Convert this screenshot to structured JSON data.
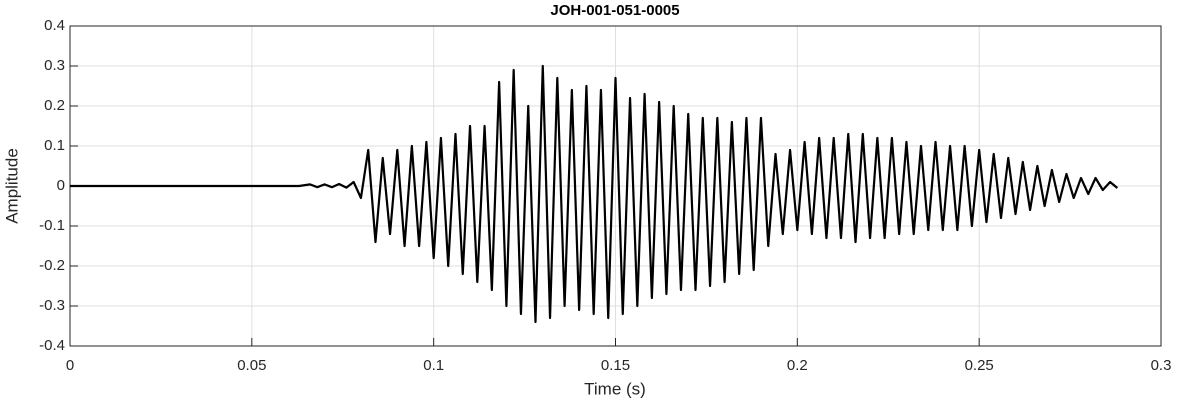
{
  "chart_data": {
    "type": "line",
    "title": "JOH-001-051-0005",
    "x_label": "Time (s)",
    "y_label": "Amplitude",
    "xlim": [
      0,
      0.3
    ],
    "ylim": [
      -0.4,
      0.4
    ],
    "xticks": [
      0,
      0.05,
      0.1,
      0.15,
      0.2,
      0.25,
      0.3
    ],
    "yticks": [
      -0.4,
      -0.3,
      -0.2,
      -0.1,
      0,
      0.1,
      0.2,
      0.3,
      0.4
    ],
    "grid": true,
    "series": [
      {
        "color": "#000000",
        "x": [
          0,
          0.063,
          0.066,
          0.068,
          0.07,
          0.072,
          0.074,
          0.076,
          0.078,
          0.08,
          0.082,
          0.084,
          0.086,
          0.088,
          0.09,
          0.092,
          0.094,
          0.096,
          0.098,
          0.1,
          0.102,
          0.104,
          0.106,
          0.108,
          0.11,
          0.112,
          0.114,
          0.116,
          0.118,
          0.12,
          0.122,
          0.124,
          0.126,
          0.128,
          0.13,
          0.132,
          0.134,
          0.136,
          0.138,
          0.14,
          0.142,
          0.144,
          0.146,
          0.148,
          0.15,
          0.152,
          0.154,
          0.156,
          0.158,
          0.16,
          0.162,
          0.164,
          0.166,
          0.168,
          0.17,
          0.172,
          0.174,
          0.176,
          0.178,
          0.18,
          0.182,
          0.184,
          0.186,
          0.188,
          0.19,
          0.192,
          0.194,
          0.196,
          0.198,
          0.2,
          0.202,
          0.204,
          0.206,
          0.208,
          0.21,
          0.212,
          0.214,
          0.216,
          0.218,
          0.22,
          0.222,
          0.224,
          0.226,
          0.228,
          0.23,
          0.232,
          0.234,
          0.236,
          0.238,
          0.24,
          0.242,
          0.244,
          0.246,
          0.248,
          0.25,
          0.252,
          0.254,
          0.256,
          0.258,
          0.26,
          0.262,
          0.264,
          0.266,
          0.268,
          0.27,
          0.272,
          0.274,
          0.276,
          0.278,
          0.28,
          0.282,
          0.284,
          0.286,
          0.288
        ],
        "values": [
          0,
          0,
          0.004,
          -0.003,
          0.004,
          -0.003,
          0.005,
          -0.004,
          0.01,
          -0.03,
          0.09,
          -0.14,
          0.07,
          -0.12,
          0.09,
          -0.15,
          0.1,
          -0.15,
          0.11,
          -0.18,
          0.12,
          -0.2,
          0.13,
          -0.22,
          0.15,
          -0.24,
          0.15,
          -0.26,
          0.26,
          -0.3,
          0.29,
          -0.32,
          0.2,
          -0.34,
          0.3,
          -0.33,
          0.27,
          -0.3,
          0.24,
          -0.31,
          0.25,
          -0.32,
          0.24,
          -0.33,
          0.27,
          -0.32,
          0.22,
          -0.3,
          0.23,
          -0.28,
          0.21,
          -0.27,
          0.2,
          -0.26,
          0.18,
          -0.26,
          0.17,
          -0.25,
          0.17,
          -0.24,
          0.16,
          -0.22,
          0.17,
          -0.21,
          0.17,
          -0.15,
          0.08,
          -0.12,
          0.09,
          -0.11,
          0.11,
          -0.12,
          0.12,
          -0.13,
          0.12,
          -0.13,
          0.13,
          -0.14,
          0.13,
          -0.13,
          0.12,
          -0.13,
          0.12,
          -0.12,
          0.11,
          -0.12,
          0.1,
          -0.11,
          0.11,
          -0.11,
          0.1,
          -0.11,
          0.1,
          -0.1,
          0.09,
          -0.09,
          0.08,
          -0.08,
          0.07,
          -0.07,
          0.06,
          -0.06,
          0.05,
          -0.05,
          0.04,
          -0.04,
          0.03,
          -0.03,
          0.02,
          -0.02,
          0.02,
          -0.01,
          0.01,
          -0.005
        ]
      }
    ]
  }
}
